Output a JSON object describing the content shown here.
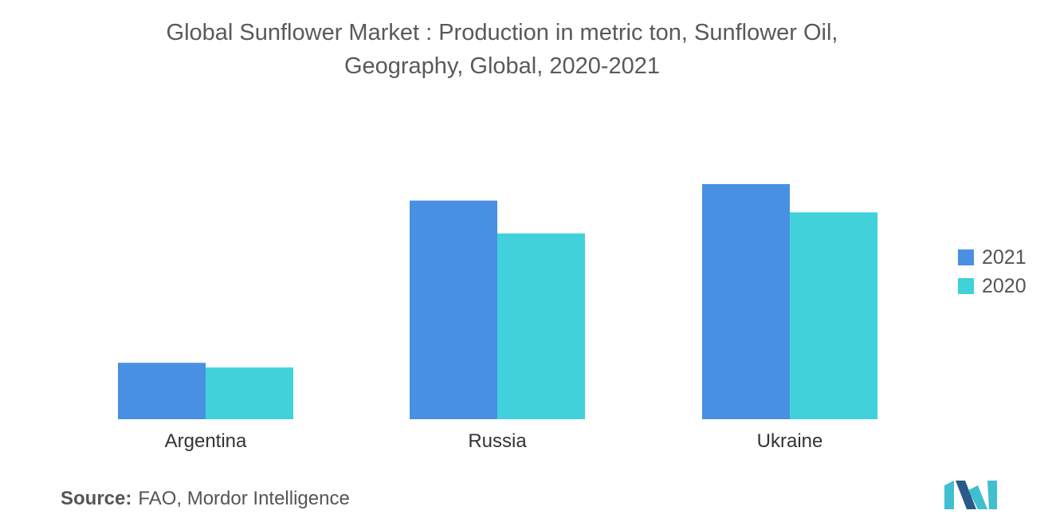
{
  "title_line1": "Global Sunflower Market : Production in metric ton, Sunflower Oil,",
  "title_line2": "Geography, Global, 2020-2021",
  "source_label": "Source:",
  "source_text": "FAO, Mordor Intelligence",
  "colors": {
    "s2021": "#4a90e2",
    "s2020": "#40d1db",
    "logo_dark": "#2b5a8a",
    "logo_light": "#3fbfcf"
  },
  "chart_data": {
    "type": "bar",
    "categories": [
      "Argentina",
      "Russia",
      "Ukraine"
    ],
    "series": [
      {
        "name": "2021",
        "values": [
          0.24,
          0.93,
          1.0
        ]
      },
      {
        "name": "2020",
        "values": [
          0.22,
          0.79,
          0.88
        ]
      }
    ],
    "ylim": [
      0,
      1.0
    ],
    "grid": false,
    "legend": "right",
    "value_note": "relative heights (no axis values printed)"
  }
}
